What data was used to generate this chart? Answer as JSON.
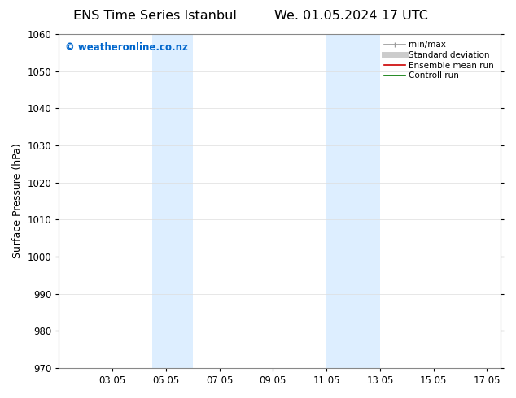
{
  "title_left": "ENS Time Series Istanbul",
  "title_right": "We. 01.05.2024 17 UTC",
  "ylabel": "Surface Pressure (hPa)",
  "ylim": [
    970,
    1060
  ],
  "yticks": [
    970,
    980,
    990,
    1000,
    1010,
    1020,
    1030,
    1040,
    1050,
    1060
  ],
  "xlim": [
    1.0,
    17.5
  ],
  "xtick_labels": [
    "03.05",
    "05.05",
    "07.05",
    "09.05",
    "11.05",
    "13.05",
    "15.05",
    "17.05"
  ],
  "xtick_positions": [
    3,
    5,
    7,
    9,
    11,
    13,
    15,
    17
  ],
  "shaded_bands": [
    {
      "xmin": 4.5,
      "xmax": 6.0,
      "color": "#ddeeff"
    },
    {
      "xmin": 11.0,
      "xmax": 13.0,
      "color": "#ddeeff"
    }
  ],
  "watermark_text": "© weatheronline.co.nz",
  "watermark_color": "#0066cc",
  "legend_items": [
    {
      "label": "min/max",
      "color": "#999999",
      "lw": 1.2,
      "ls": "-",
      "type": "minmax"
    },
    {
      "label": "Standard deviation",
      "color": "#cccccc",
      "lw": 5,
      "ls": "-",
      "type": "line"
    },
    {
      "label": "Ensemble mean run",
      "color": "#cc0000",
      "lw": 1.2,
      "ls": "-",
      "type": "line"
    },
    {
      "label": "Controll run",
      "color": "#007700",
      "lw": 1.2,
      "ls": "-",
      "type": "line"
    }
  ],
  "background_color": "#ffffff",
  "grid_color": "#dddddd",
  "title_fontsize": 11.5,
  "ylabel_fontsize": 9,
  "tick_fontsize": 8.5,
  "legend_fontsize": 7.5,
  "watermark_fontsize": 8.5
}
